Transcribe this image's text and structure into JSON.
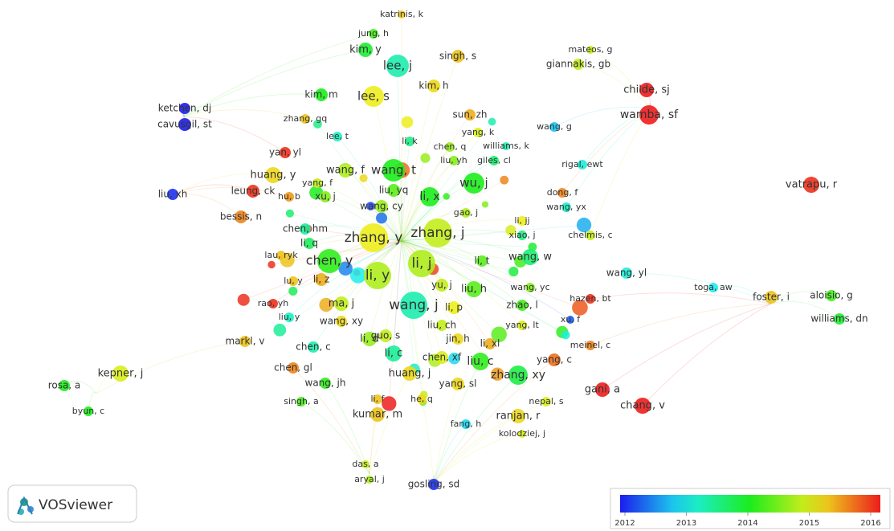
{
  "network": {
    "nodes": [
      {
        "label": "katrinis, k",
        "score": 2015.2
      },
      {
        "label": "jung, h",
        "score": 2014.2
      },
      {
        "label": "kim, y",
        "score": 2013.9
      },
      {
        "label": "lee, j",
        "score": 2013.3
      },
      {
        "label": "singh, s",
        "score": 2015.2
      },
      {
        "label": "mateos, g",
        "score": 2014.8
      },
      {
        "label": "giannakis, gb",
        "score": 2014.8
      },
      {
        "label": "childe, sj",
        "score": 2016
      },
      {
        "label": "wamba, sf",
        "score": 2016
      },
      {
        "label": "kim, h",
        "score": 2015.1
      },
      {
        "label": "kim, m",
        "score": 2014
      },
      {
        "label": "lee, s",
        "score": 2015
      },
      {
        "label": "ketchen, dj",
        "score": 2012
      },
      {
        "label": "cavusgil, st",
        "score": 2012
      },
      {
        "label": "zhang, gq",
        "score": 2015.2
      },
      {
        "label": "sun, zh",
        "score": 2015.3
      },
      {
        "label": "wang, g",
        "score": 2012.8
      },
      {
        "label": "lee, t",
        "score": 2013.2
      },
      {
        "label": "yang, k",
        "score": 2014.9
      },
      {
        "label": "li, k",
        "score": 2013.5
      },
      {
        "label": "yan, yl",
        "score": 2015.9
      },
      {
        "label": "chen, q",
        "score": 2014.6
      },
      {
        "label": "williams, k",
        "score": 2013.3
      },
      {
        "label": "liu, yh",
        "score": 2014.5
      },
      {
        "label": "giles, cl",
        "score": 2013.6
      },
      {
        "label": "rigal, ewt",
        "score": 2013.1
      },
      {
        "label": "huang, y",
        "score": 2015.1
      },
      {
        "label": "wang, f",
        "score": 2014.7
      },
      {
        "label": "wang, t",
        "score": 2014
      },
      {
        "label": "wu, j",
        "score": 2014
      },
      {
        "label": "vatrapu, r",
        "score": 2015.9
      },
      {
        "label": "liu, xh",
        "score": 2012.1
      },
      {
        "label": "leung, ck",
        "score": 2015.9
      },
      {
        "label": "yang, f",
        "score": 2014.8
      },
      {
        "label": "xu, j",
        "score": 2014.5
      },
      {
        "label": "li, x",
        "score": 2014
      },
      {
        "label": "liu, yq",
        "score": 2014.3
      },
      {
        "label": "hu, b",
        "score": 2015.4
      },
      {
        "label": "wang, cy",
        "score": 2014.6
      },
      {
        "label": "dong, f",
        "score": 2015.5
      },
      {
        "label": "gao, j",
        "score": 2014.7
      },
      {
        "label": "wang, yx",
        "score": 2013.2
      },
      {
        "label": "bessis, n",
        "score": 2015.5
      },
      {
        "label": "li, jj",
        "score": 2015
      },
      {
        "label": "chen, hm",
        "score": 2013.4
      },
      {
        "label": "zhang, y",
        "score": 2015
      },
      {
        "label": "zhang, j",
        "score": 2014.8
      },
      {
        "label": "xiao, j",
        "score": 2013.5
      },
      {
        "label": "chelmis, c",
        "score": 2014.8
      },
      {
        "label": "li, q",
        "score": 2013.7
      },
      {
        "label": "lau, ryk",
        "score": 2015.2
      },
      {
        "label": "chen, y",
        "score": 2014.1
      },
      {
        "label": "li, j",
        "score": 2014.7
      },
      {
        "label": "li, t",
        "score": 2014.3
      },
      {
        "label": "wang, w",
        "score": 2013.6
      },
      {
        "label": "wang, yl",
        "score": 2013.1
      },
      {
        "label": "li, y",
        "score": 2014.7
      },
      {
        "label": "lu, y",
        "score": 2015.2
      },
      {
        "label": "li, z",
        "score": 2015.3
      },
      {
        "label": "yu, j",
        "score": 2014.8
      },
      {
        "label": "liu, h",
        "score": 2014.3
      },
      {
        "label": "wang, yc",
        "score": 2014.5
      },
      {
        "label": "toga, aw",
        "score": 2013
      },
      {
        "label": "aloisio, g",
        "score": 2014.2
      },
      {
        "label": "foster, i",
        "score": 2015.2
      },
      {
        "label": "williams, dn",
        "score": 2013.9
      },
      {
        "label": "hazen, bt",
        "score": 2015.9
      },
      {
        "label": "rao, yh",
        "score": 2015.9
      },
      {
        "label": "ma, j",
        "score": 2014.8
      },
      {
        "label": "wang, j",
        "score": 2013.3
      },
      {
        "label": "li, p",
        "score": 2015
      },
      {
        "label": "zhao, l",
        "score": 2014.2
      },
      {
        "label": "liu, y",
        "score": 2013.2
      },
      {
        "label": "wang, xy",
        "score": 2015.1
      },
      {
        "label": "yang, lt",
        "score": 2014.9
      },
      {
        "label": "xu, f",
        "score": 2012.3
      },
      {
        "label": "markl, v",
        "score": 2015.2
      },
      {
        "label": "li, d",
        "score": 2014.6
      },
      {
        "label": "guo, s",
        "score": 2014.8
      },
      {
        "label": "liu, ch",
        "score": 2014.8
      },
      {
        "label": "jin, h",
        "score": 2015.1
      },
      {
        "label": "li, xl",
        "score": 2015.3
      },
      {
        "label": "meinel, c",
        "score": 2015.5
      },
      {
        "label": "chen, c",
        "score": 2013.3
      },
      {
        "label": "li, c",
        "score": 2013.4
      },
      {
        "label": "chen, xf",
        "score": 2014.9
      },
      {
        "label": "liu, c",
        "score": 2014.1
      },
      {
        "label": "yang, c",
        "score": 2015.6
      },
      {
        "label": "kepner, j",
        "score": 2014.9
      },
      {
        "label": "chen, gl",
        "score": 2015.5
      },
      {
        "label": "huang, j",
        "score": 2015.1
      },
      {
        "label": "zhang, xy",
        "score": 2013.8
      },
      {
        "label": "rosa, a",
        "score": 2014
      },
      {
        "label": "wang, jh",
        "score": 2014.1
      },
      {
        "label": "yang, sl",
        "score": 2015.1
      },
      {
        "label": "gani, a",
        "score": 2016
      },
      {
        "label": "chang, v",
        "score": 2016
      },
      {
        "label": "singh, a",
        "score": 2014.2
      },
      {
        "label": "li, f",
        "score": 2015.2
      },
      {
        "label": "he, q",
        "score": 2015.1
      },
      {
        "label": "nepal, s",
        "score": 2014.9
      },
      {
        "label": "byun, c",
        "score": 2014
      },
      {
        "label": "kumar, m",
        "score": 2015.2
      },
      {
        "label": "ranjan, r",
        "score": 2015.1
      },
      {
        "label": "fang, h",
        "score": 2012.9
      },
      {
        "label": "kolodziej, j",
        "score": 2014.9
      },
      {
        "label": "das, a",
        "score": 2014.8
      },
      {
        "label": "aryal, j",
        "score": 2014.7
      },
      {
        "label": "gosling, sd",
        "score": 2012.1
      }
    ],
    "other_nodes": [
      2015.9,
      2013.2,
      2014.1,
      2015.3,
      2012.4,
      2014.8,
      2013.6,
      2015.7,
      2014.3,
      2012.9,
      2015.1,
      2013.9,
      2016,
      2014.6,
      2013.1,
      2015.5,
      2014,
      2012.2,
      2015.8,
      2013.4,
      2014.9,
      2015.2,
      2013.7,
      2014.4,
      2016,
      2012.7,
      2015,
      2013.8,
      2014.7,
      2015.6,
      2014.2,
      2013,
      2015.9,
      2012.5,
      2014.5,
      2015.4,
      2013.5,
      2014.1,
      2015.8,
      2013.3
    ]
  },
  "color_scale": {
    "ticks": [
      2012,
      2013,
      2014,
      2015,
      2016
    ]
  },
  "logo": "VOSviewer"
}
